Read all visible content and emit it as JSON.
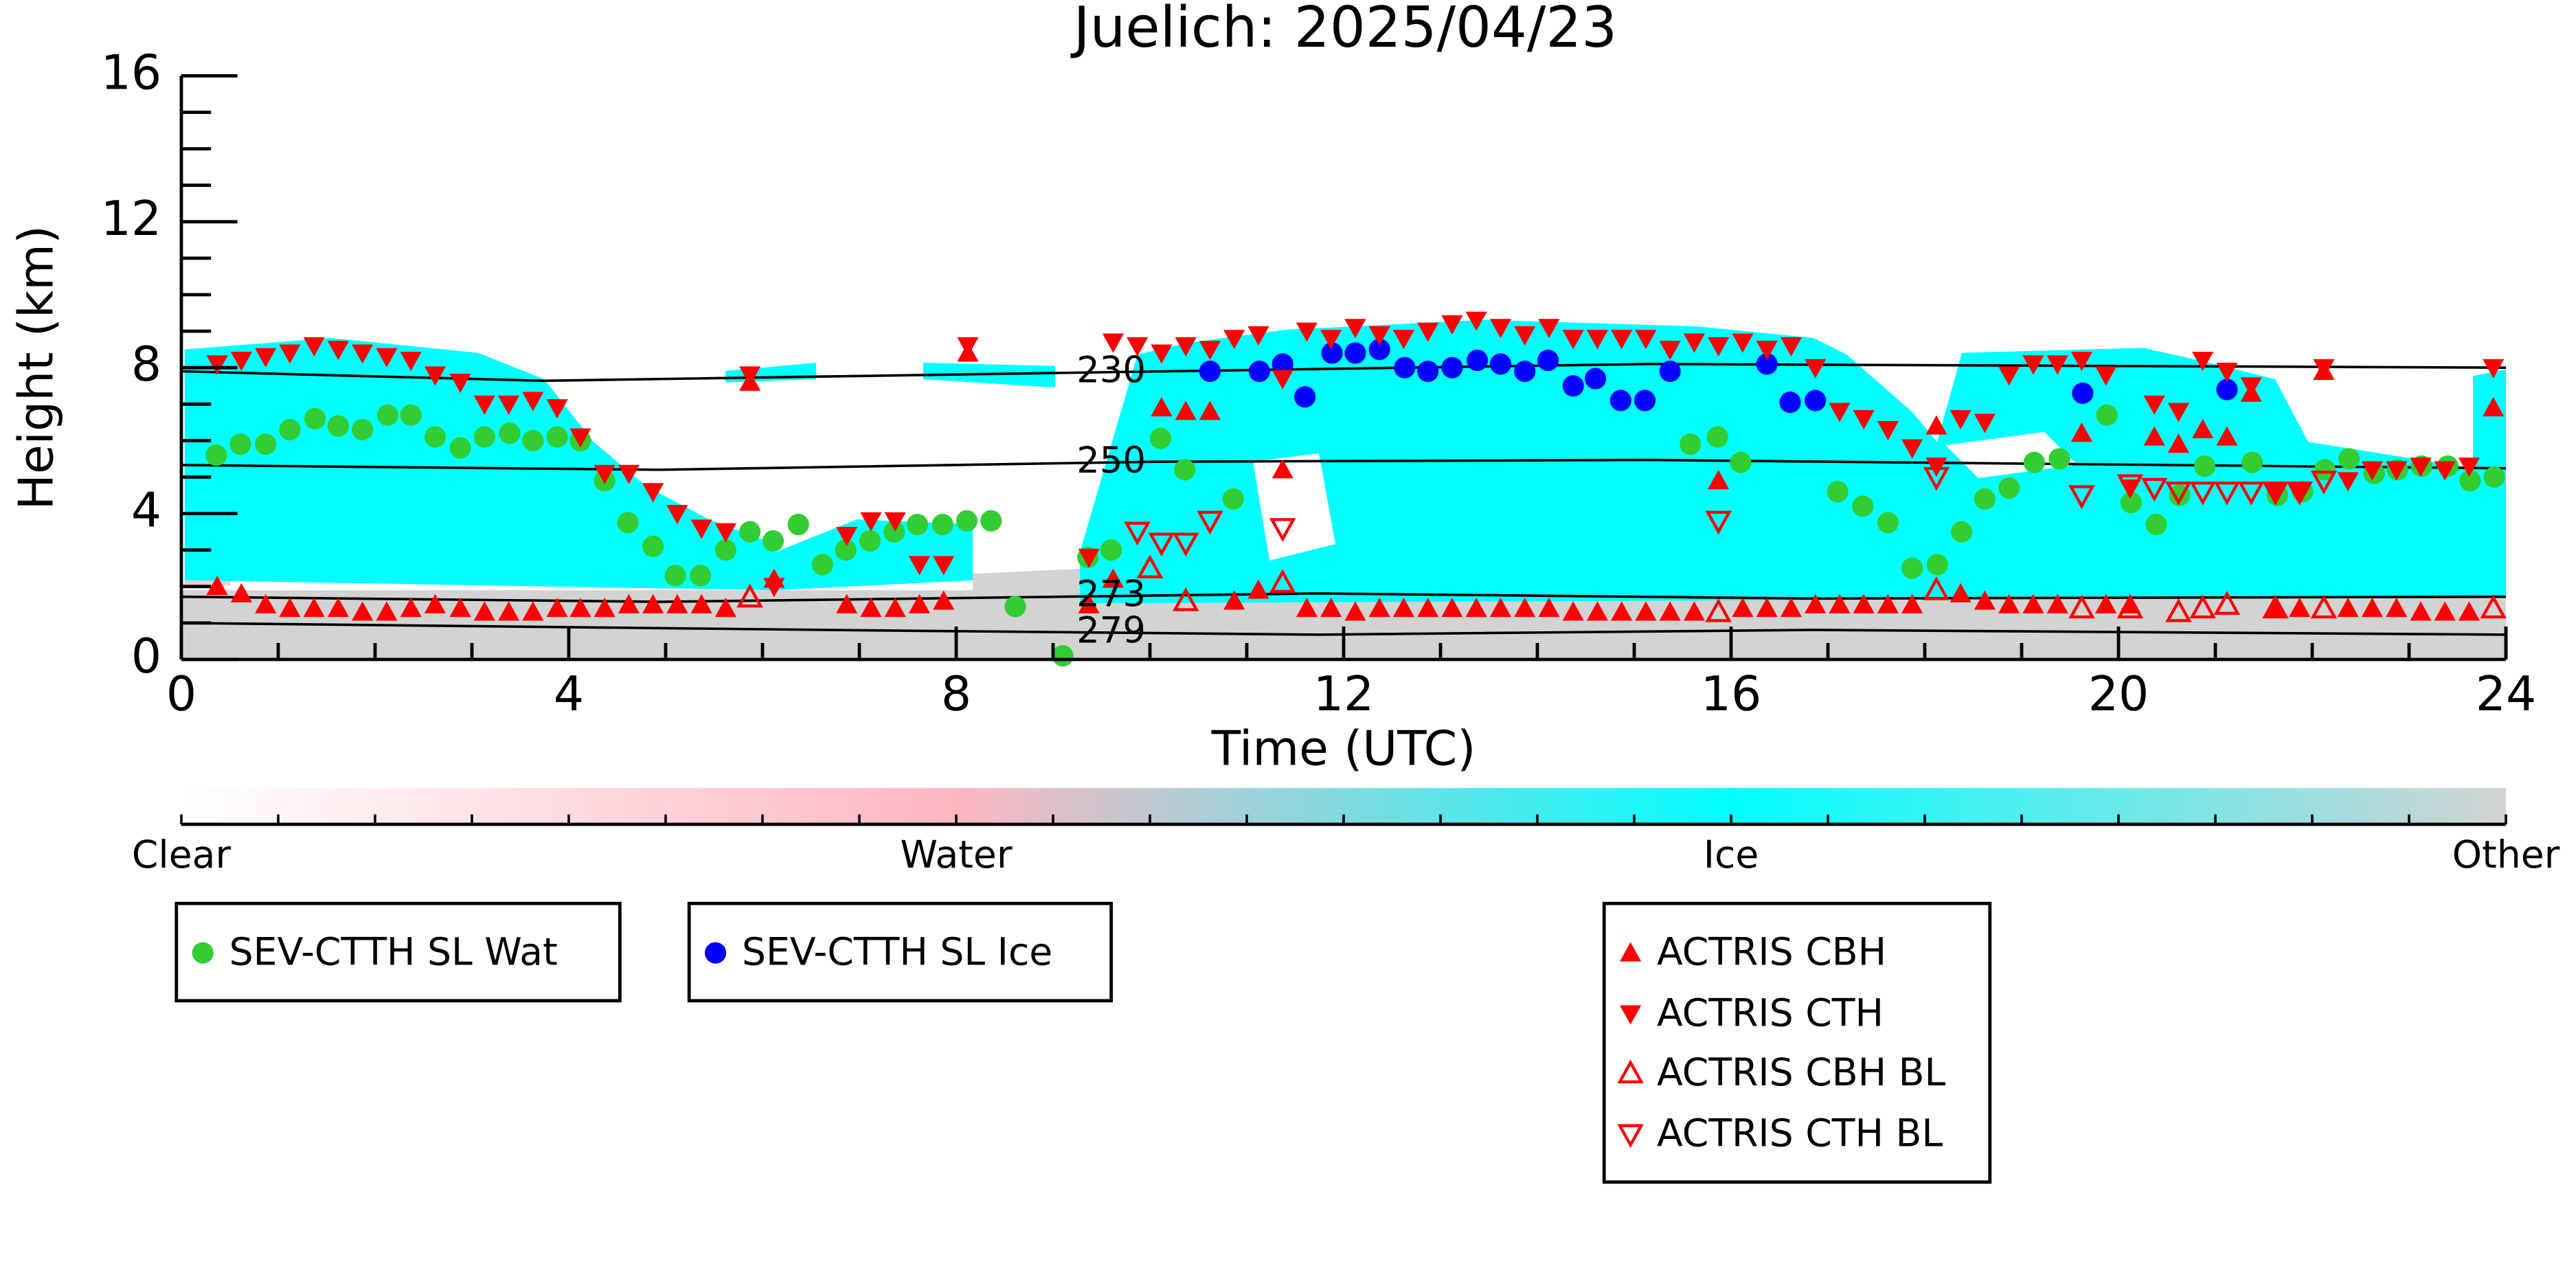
{
  "chart_data": {
    "type": "scatter",
    "title": "Juelich: 2025/04/23",
    "xlabel": "Time (UTC)",
    "ylabel": "Height (km)",
    "xlim": [
      0,
      24
    ],
    "ylim": [
      0,
      16
    ],
    "xticks": [
      0,
      4,
      8,
      12,
      16,
      20,
      24
    ],
    "yticks": [
      0,
      4,
      8,
      12,
      16
    ],
    "xminorticks": [
      1,
      2,
      3,
      5,
      6,
      7,
      9,
      10,
      11,
      13,
      14,
      15,
      17,
      18,
      19,
      21,
      22,
      23
    ],
    "yminorticks": [
      1,
      2,
      3,
      5,
      6,
      7,
      9,
      10,
      11,
      13,
      14,
      15
    ],
    "series": [
      {
        "name": "SEV-CTTH SL Wat",
        "color": "#33cc33",
        "marker": "circle",
        "x": [
          0.36,
          0.61,
          0.87,
          1.12,
          1.38,
          1.62,
          1.87,
          2.13,
          2.37,
          2.62,
          2.88,
          3.13,
          3.39,
          3.63,
          3.88,
          4.12,
          4.37,
          4.61,
          4.87,
          5.1,
          5.36,
          5.62,
          5.87,
          6.11,
          6.37,
          6.62,
          6.86,
          7.11,
          7.36,
          7.6,
          7.86,
          8.11,
          8.36,
          8.61,
          9.1,
          9.36,
          9.6,
          10.11,
          10.36,
          10.86,
          15.58,
          15.86,
          16.1,
          17.1,
          17.36,
          17.62,
          17.87,
          18.13,
          18.38,
          18.62,
          18.87,
          19.13,
          19.39,
          19.88,
          20.13,
          20.39,
          20.63,
          20.89,
          21.38,
          21.64,
          21.9,
          22.13,
          22.38,
          22.64,
          22.88,
          23.13,
          23.4,
          23.63,
          23.88
        ],
        "values": [
          5.6,
          5.9,
          5.9,
          6.3,
          6.6,
          6.4,
          6.3,
          6.7,
          6.7,
          6.1,
          5.8,
          6.1,
          6.2,
          6.0,
          6.1,
          6.0,
          4.9,
          3.75,
          3.1,
          2.3,
          2.3,
          3.0,
          3.5,
          3.25,
          3.7,
          2.6,
          3.0,
          3.25,
          3.5,
          3.7,
          3.7,
          3.8,
          3.8,
          1.45,
          0.1,
          2.8,
          3.0,
          6.06,
          5.2,
          4.4,
          5.9,
          6.1,
          5.4,
          4.6,
          4.2,
          3.75,
          2.5,
          2.6,
          3.5,
          4.4,
          4.7,
          5.4,
          5.5,
          6.7,
          4.3,
          3.7,
          4.5,
          5.3,
          5.4,
          4.5,
          4.6,
          5.2,
          5.5,
          5.1,
          5.2,
          5.3,
          5.3,
          4.9,
          5.0
        ]
      },
      {
        "name": "SEV-CTTH SL Ice",
        "color": "#0000ff",
        "marker": "circle",
        "x": [
          10.62,
          11.13,
          11.37,
          11.6,
          11.88,
          12.12,
          12.37,
          12.63,
          12.87,
          13.12,
          13.38,
          13.62,
          13.87,
          14.11,
          14.37,
          14.6,
          14.86,
          15.11,
          15.37,
          16.37,
          16.61,
          16.87,
          19.63,
          21.12
        ],
        "values": [
          7.9,
          7.9,
          8.1,
          7.2,
          8.4,
          8.4,
          8.5,
          8.0,
          7.9,
          8.0,
          8.2,
          8.1,
          7.9,
          8.2,
          7.5,
          7.7,
          7.1,
          7.1,
          7.9,
          8.1,
          7.05,
          7.1,
          7.3,
          7.4
        ]
      },
      {
        "name": "ACTRIS CBH",
        "color": "#ff0000",
        "marker": "triangle-up",
        "x": [
          0.37,
          0.62,
          0.87,
          1.12,
          1.37,
          1.62,
          1.87,
          2.12,
          2.37,
          2.62,
          2.88,
          3.13,
          3.38,
          3.63,
          3.88,
          4.12,
          4.37,
          4.62,
          4.87,
          5.12,
          5.37,
          5.62,
          5.87,
          6.12,
          6.87,
          7.12,
          7.37,
          7.62,
          7.87,
          8.12,
          9.37,
          9.62,
          10.12,
          10.37,
          10.62,
          10.87,
          11.12,
          11.37,
          11.62,
          11.87,
          12.12,
          12.37,
          12.62,
          12.87,
          13.12,
          13.37,
          13.62,
          13.87,
          14.12,
          14.37,
          14.62,
          14.87,
          15.12,
          15.37,
          15.62,
          15.87,
          16.12,
          16.37,
          16.62,
          16.87,
          17.12,
          17.37,
          17.62,
          17.87,
          18.12,
          18.37,
          18.62,
          18.87,
          19.12,
          19.37,
          19.62,
          19.87,
          20.12,
          20.37,
          20.62,
          20.87,
          21.12,
          21.37,
          21.62,
          21.87,
          22.12,
          22.37,
          22.62,
          22.87,
          23.12,
          23.37,
          23.62,
          23.87
        ],
        "values": [
          2.0,
          1.8,
          1.5,
          1.4,
          1.4,
          1.4,
          1.3,
          1.3,
          1.4,
          1.5,
          1.4,
          1.3,
          1.3,
          1.3,
          1.4,
          1.4,
          1.4,
          1.5,
          1.5,
          1.5,
          1.5,
          1.4,
          7.6,
          2.2,
          1.5,
          1.4,
          1.4,
          1.5,
          1.6,
          8.4,
          1.5,
          2.2,
          6.9,
          6.8,
          6.8,
          1.6,
          1.9,
          5.2,
          1.4,
          1.4,
          1.3,
          1.4,
          1.4,
          1.4,
          1.4,
          1.4,
          1.4,
          1.4,
          1.4,
          1.3,
          1.3,
          1.3,
          1.3,
          1.3,
          1.3,
          4.9,
          1.4,
          1.4,
          1.4,
          1.5,
          1.5,
          1.5,
          1.5,
          1.5,
          6.4,
          1.8,
          1.6,
          1.5,
          1.5,
          1.5,
          6.2,
          1.5,
          1.5,
          6.1,
          5.9,
          6.3,
          6.1,
          7.3,
          1.4,
          1.4,
          7.9,
          1.4,
          1.4,
          1.4,
          1.3,
          1.3,
          1.3,
          6.9
        ]
      },
      {
        "name": "ACTRIS CTH",
        "color": "#ff0000",
        "marker": "triangle-down",
        "x": [
          0.37,
          0.62,
          0.87,
          1.12,
          1.37,
          1.62,
          1.87,
          2.12,
          2.37,
          2.62,
          2.88,
          3.13,
          3.38,
          3.63,
          3.88,
          4.12,
          4.37,
          4.62,
          4.87,
          5.12,
          5.37,
          5.62,
          5.87,
          6.12,
          6.87,
          7.12,
          7.37,
          7.62,
          7.87,
          8.12,
          9.37,
          9.62,
          9.87,
          10.12,
          10.37,
          10.62,
          10.87,
          11.12,
          11.37,
          11.62,
          11.87,
          12.12,
          12.37,
          12.62,
          12.87,
          13.12,
          13.37,
          13.62,
          13.87,
          14.12,
          14.37,
          14.62,
          14.87,
          15.12,
          15.37,
          15.62,
          15.87,
          16.12,
          16.37,
          16.62,
          16.87,
          17.12,
          17.37,
          17.62,
          17.87,
          18.12,
          18.37,
          18.62,
          18.87,
          19.12,
          19.37,
          19.62,
          19.87,
          20.12,
          20.37,
          20.62,
          20.87,
          21.12,
          21.37,
          21.62,
          21.87,
          22.12,
          22.37,
          22.62,
          22.87,
          23.12,
          23.37,
          23.62,
          23.87
        ],
        "values": [
          8.1,
          8.2,
          8.3,
          8.4,
          8.6,
          8.5,
          8.4,
          8.3,
          8.2,
          7.8,
          7.6,
          7.0,
          7.0,
          7.1,
          6.9,
          6.1,
          5.1,
          5.1,
          4.6,
          4.0,
          3.6,
          3.5,
          7.8,
          2.0,
          3.4,
          3.8,
          3.8,
          2.6,
          2.6,
          8.6,
          2.8,
          8.7,
          8.6,
          8.4,
          8.6,
          8.5,
          8.8,
          8.9,
          7.7,
          9.0,
          8.8,
          9.1,
          8.9,
          8.8,
          9.0,
          9.2,
          9.3,
          9.1,
          8.9,
          9.1,
          8.8,
          8.8,
          8.8,
          8.8,
          8.5,
          8.7,
          8.6,
          8.7,
          8.5,
          8.6,
          8.0,
          6.8,
          6.6,
          6.3,
          5.8,
          5.3,
          6.6,
          6.5,
          7.8,
          8.1,
          8.1,
          8.2,
          7.8,
          4.7,
          7.0,
          6.8,
          8.2,
          7.9,
          7.5,
          4.6,
          4.6,
          8.0,
          4.9,
          5.2,
          5.2,
          5.3,
          5.2,
          5.3,
          8.0
        ]
      },
      {
        "name": "ACTRIS CBH BL",
        "color": "#ff0000",
        "marker": "triangle-up-open",
        "x": [
          5.87,
          10.0,
          10.37,
          11.37,
          15.87,
          18.12,
          19.62,
          20.12,
          20.62,
          20.87,
          21.12,
          21.62,
          22.12,
          23.87
        ],
        "values": [
          1.7,
          2.5,
          1.6,
          2.1,
          1.3,
          1.9,
          1.4,
          1.4,
          1.3,
          1.4,
          1.5,
          1.4,
          1.4,
          1.4
        ]
      },
      {
        "name": "ACTRIS CTH BL",
        "color": "#ff0000",
        "marker": "triangle-down-open",
        "x": [
          9.87,
          10.12,
          10.37,
          10.62,
          11.37,
          15.87,
          18.12,
          19.62,
          20.12,
          20.37,
          20.62,
          20.87,
          21.12,
          21.37,
          21.62,
          21.87,
          22.12
        ],
        "values": [
          3.5,
          3.2,
          3.2,
          3.8,
          3.6,
          3.8,
          5.0,
          4.5,
          4.8,
          4.7,
          4.6,
          4.6,
          4.6,
          4.6,
          4.6,
          4.6,
          4.9
        ]
      }
    ],
    "contours": [
      {
        "level": 230,
        "x": [
          0,
          3.74,
          9.19,
          15.15,
          24
        ],
        "values": [
          7.9,
          7.64,
          7.86,
          8.1,
          8.0
        ]
      },
      {
        "level": 250,
        "x": [
          0,
          4.94,
          10.04,
          15.15,
          24
        ],
        "values": [
          5.33,
          5.2,
          5.42,
          5.47,
          5.24
        ]
      },
      {
        "level": 273,
        "x": [
          0,
          4.94,
          11.74,
          16.85,
          24
        ],
        "values": [
          1.72,
          1.58,
          1.81,
          1.67,
          1.72
        ]
      },
      {
        "level": 279,
        "x": [
          0,
          6.64,
          11.74,
          16.85,
          24
        ],
        "values": [
          1.0,
          0.81,
          0.68,
          0.81,
          0.68
        ]
      }
    ],
    "colorbar": {
      "labels": [
        "Clear",
        "Water",
        "Ice",
        "Other"
      ],
      "colors": [
        "#ffffff",
        "#ffb6c1",
        "#00ffff",
        "#d3d3d3"
      ]
    }
  }
}
